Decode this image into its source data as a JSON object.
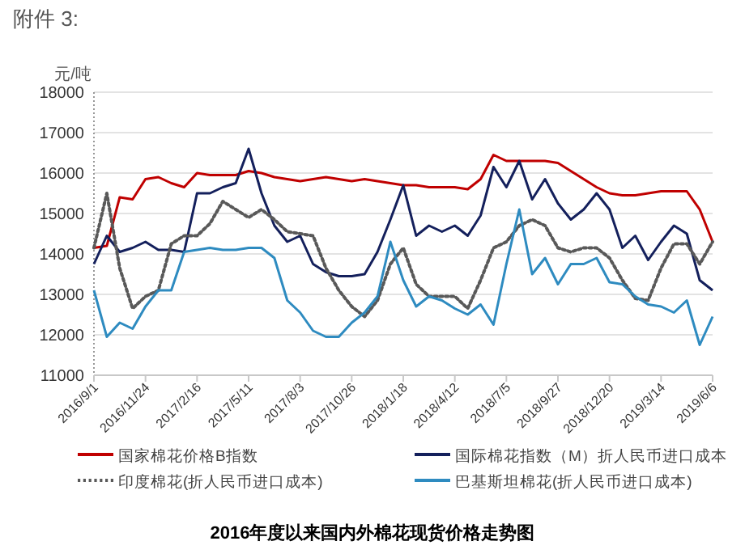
{
  "chart_data": {
    "type": "line",
    "title": "2016年度以来国内外棉花现货价格走势图",
    "ylabel": "元/吨",
    "annotations": [
      "附件 3:"
    ],
    "x": [
      "2016-09-01",
      "2016-09-22",
      "2016-10-13",
      "2016-11-03",
      "2016-11-24",
      "2016-12-15",
      "2017-01-05",
      "2017-01-26",
      "2017-02-16",
      "2017-03-09",
      "2017-03-30",
      "2017-04-20",
      "2017-05-11",
      "2017-06-01",
      "2017-06-22",
      "2017-07-13",
      "2017-08-03",
      "2017-08-24",
      "2017-09-14",
      "2017-10-05",
      "2017-10-26",
      "2017-11-16",
      "2017-12-07",
      "2017-12-28",
      "2018-01-18",
      "2018-02-08",
      "2018-03-01",
      "2018-03-22",
      "2018-04-12",
      "2018-05-03",
      "2018-05-24",
      "2018-06-14",
      "2018-07-05",
      "2018-07-26",
      "2018-08-16",
      "2018-09-06",
      "2018-09-27",
      "2018-10-18",
      "2018-11-08",
      "2018-11-29",
      "2018-12-20",
      "2019-01-10",
      "2019-01-31",
      "2019-02-21",
      "2019-03-14",
      "2019-04-04",
      "2019-04-25",
      "2019-05-16",
      "2019-06-06"
    ],
    "series": [
      {
        "name": "国家棉花价格B指数",
        "color": "#c00000",
        "line_style": "solid",
        "values": [
          14150,
          14200,
          15400,
          15350,
          15850,
          15900,
          15750,
          15650,
          16000,
          15950,
          15950,
          15950,
          16050,
          16000,
          15900,
          15850,
          15800,
          15850,
          15900,
          15850,
          15800,
          15850,
          15800,
          15750,
          15700,
          15700,
          15650,
          15650,
          15650,
          15600,
          15850,
          16450,
          16300,
          16300,
          16300,
          16300,
          16250,
          16050,
          15850,
          15650,
          15500,
          15450,
          15450,
          15500,
          15550,
          15550,
          15550,
          15100,
          14300
        ]
      },
      {
        "name": "国际棉花指数（M）折人民币进口成本",
        "color": "#14205c",
        "line_style": "solid",
        "values": [
          13750,
          14450,
          14050,
          14150,
          14300,
          14100,
          14100,
          14050,
          15500,
          15500,
          15650,
          15750,
          16600,
          15500,
          14700,
          14300,
          14450,
          13750,
          13550,
          13450,
          13450,
          13500,
          14050,
          14850,
          15700,
          14450,
          14700,
          14550,
          14700,
          14450,
          14950,
          16150,
          15650,
          16300,
          15350,
          15850,
          15250,
          14850,
          15100,
          15500,
          15100,
          14150,
          14450,
          13850,
          14300,
          14700,
          14500,
          13350,
          13100
        ]
      },
      {
        "name": "印度棉花(折人民币进口成本)",
        "color": "#595959",
        "line_style": "dotted",
        "values": [
          14150,
          15500,
          13650,
          12650,
          12950,
          13100,
          14250,
          14450,
          14450,
          14750,
          15300,
          15100,
          14900,
          15100,
          14850,
          14550,
          14500,
          14450,
          13650,
          13100,
          12700,
          12450,
          12850,
          13750,
          14150,
          13250,
          12950,
          12950,
          12950,
          12650,
          13350,
          14150,
          14300,
          14700,
          14850,
          14700,
          14150,
          14050,
          14150,
          14150,
          13900,
          13350,
          12900,
          12850,
          13650,
          14250,
          14250,
          13750,
          14300
        ]
      },
      {
        "name": "巴基斯坦棉花(折人民币进口成本)",
        "color": "#2e8bc0",
        "line_style": "solid",
        "values": [
          13100,
          11950,
          12300,
          12150,
          12700,
          13100,
          13100,
          14050,
          14100,
          14150,
          14100,
          14100,
          14150,
          14150,
          13900,
          12850,
          12550,
          12100,
          11950,
          11950,
          12300,
          12550,
          12950,
          14300,
          13350,
          12700,
          12950,
          12850,
          12650,
          12500,
          12750,
          12250,
          13750,
          15100,
          13500,
          13900,
          13250,
          13750,
          13750,
          13900,
          13300,
          13250,
          12950,
          12750,
          12700,
          12550,
          12850,
          11750,
          12450
        ]
      }
    ],
    "xlim": [
      "2016-09-01",
      "2019-06-06"
    ],
    "xticks": [
      {
        "value": "2016-09-01",
        "label": "2016/9/1"
      },
      {
        "value": "2016-11-24",
        "label": "2016/11/24"
      },
      {
        "value": "2017-02-16",
        "label": "2017/2/16"
      },
      {
        "value": "2017-05-11",
        "label": "2017/5/11"
      },
      {
        "value": "2017-08-03",
        "label": "2017/8/3"
      },
      {
        "value": "2017-10-26",
        "label": "2017/10/26"
      },
      {
        "value": "2018-01-18",
        "label": "2018/1/18"
      },
      {
        "value": "2018-04-12",
        "label": "2018/4/12"
      },
      {
        "value": "2018-07-05",
        "label": "2018/7/5"
      },
      {
        "value": "2018-09-27",
        "label": "2018/9/27"
      },
      {
        "value": "2018-12-20",
        "label": "2018/12/20"
      },
      {
        "value": "2019-03-14",
        "label": "2019/3/14"
      },
      {
        "value": "2019-06-06",
        "label": "2019/6/6"
      }
    ],
    "ylim": [
      11000,
      18000
    ],
    "yticks": [
      11000,
      12000,
      13000,
      14000,
      15000,
      16000,
      17000,
      18000
    ],
    "grid": "y",
    "legend": "bottom"
  }
}
